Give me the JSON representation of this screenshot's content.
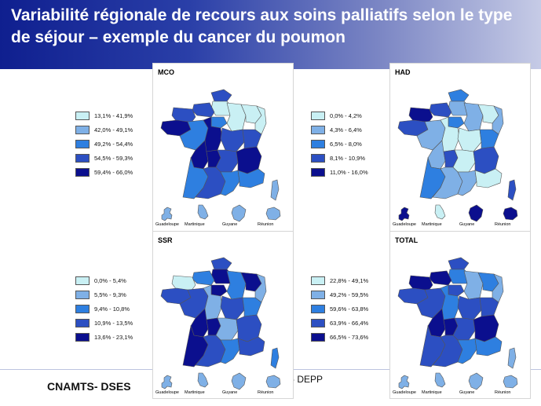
{
  "slide": {
    "title": "Variabilité régionale de recours aux soins palliatifs selon le type de séjour – exemple du cancer du poumon",
    "footer_left": "CNAMTS- DSES",
    "footer_right": "- DEPP"
  },
  "colors": {
    "c1": "#c9f0f4",
    "c2": "#7fb0e6",
    "c3": "#2e7fe0",
    "c4": "#2c4fc2",
    "c5": "#0b0f8e",
    "border": "#555555"
  },
  "overseas_labels": [
    "Guadeloupe",
    "Martinique",
    "Guyane",
    "Réunion"
  ],
  "maps": [
    {
      "key": "mco",
      "label": "MCO",
      "legend": [
        "13,1% - 41,9%",
        "42,0% - 49,1%",
        "49,2% - 54,4%",
        "54,5% - 59,3%",
        "59,4% - 66,0%"
      ]
    },
    {
      "key": "had",
      "label": "HAD",
      "legend": [
        "0,0% - 4,2%",
        "4,3% - 6,4%",
        "6,5% - 8,0%",
        "8,1% - 10,9%",
        "11,0% - 16,0%"
      ]
    },
    {
      "key": "ssr",
      "label": "SSR",
      "legend": [
        "0,0% - 5,4%",
        "5,5% - 9,3%",
        "9,4% - 10,8%",
        "10,9% - 13,5%",
        "13,6% - 23,1%"
      ]
    },
    {
      "key": "total",
      "label": "TOTAL",
      "legend": [
        "22,8% - 49,1%",
        "49,2% - 59,5%",
        "59,6% - 63,8%",
        "63,9% - 66,4%",
        "66,5% - 73,6%"
      ]
    }
  ],
  "region_classes": {
    "mco": {
      "npdc": 4,
      "pic": 1,
      "hn": 4,
      "bn": 4,
      "bre": 5,
      "idf": 3,
      "cha": 1,
      "lor": 1,
      "als": 1,
      "pdl": 3,
      "cen": 5,
      "bou": 4,
      "fc": 4,
      "pch": 5,
      "lim": 5,
      "auv": 4,
      "rha": 5,
      "aqu": 3,
      "mip": 4,
      "lr": 3,
      "paca": 3,
      "cor": 2,
      "gua": 2,
      "mar": 2,
      "guy": 2,
      "reu": 2
    },
    "had": {
      "npdc": 3,
      "pic": 2,
      "hn": 4,
      "bn": 5,
      "bre": 4,
      "idf": 3,
      "cha": 2,
      "lor": 1,
      "als": 2,
      "pdl": 2,
      "cen": 1,
      "bou": 1,
      "fc": 3,
      "pch": 2,
      "lim": 4,
      "auv": 1,
      "rha": 4,
      "aqu": 3,
      "mip": 2,
      "lr": 2,
      "paca": 1,
      "cor": 4,
      "gua": 5,
      "mar": 1,
      "guy": 5,
      "reu": 5
    },
    "ssr": {
      "npdc": 4,
      "pic": 5,
      "hn": 3,
      "bn": 1,
      "bre": 4,
      "idf": 5,
      "cha": 3,
      "lor": 5,
      "als": 2,
      "pdl": 4,
      "cen": 2,
      "bou": 4,
      "fc": 3,
      "pch": 5,
      "lim": 5,
      "auv": 2,
      "rha": 4,
      "aqu": 5,
      "mip": 4,
      "lr": 3,
      "paca": 4,
      "cor": 3,
      "gua": 2,
      "mar": 2,
      "guy": 2,
      "reu": 2
    },
    "total": {
      "npdc": 4,
      "pic": 3,
      "hn": 5,
      "bn": 5,
      "bre": 4,
      "idf": 4,
      "cha": 2,
      "lor": 3,
      "als": 2,
      "pdl": 4,
      "cen": 3,
      "bou": 4,
      "fc": 4,
      "pch": 5,
      "lim": 5,
      "auv": 4,
      "rha": 5,
      "aqu": 4,
      "mip": 4,
      "lr": 3,
      "paca": 3,
      "cor": 2,
      "gua": 2,
      "mar": 2,
      "guy": 2,
      "reu": 2
    }
  }
}
